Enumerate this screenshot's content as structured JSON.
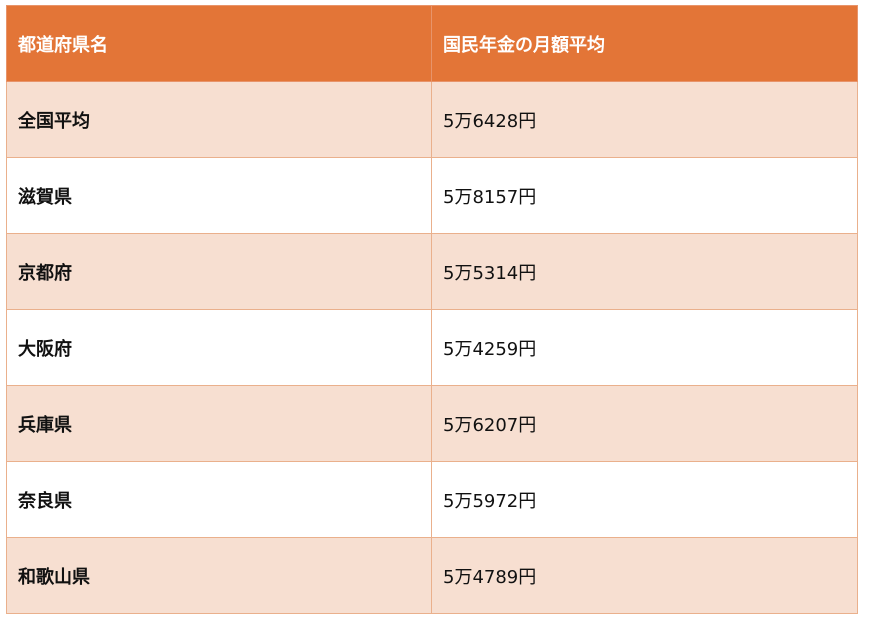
{
  "table": {
    "headers": [
      "都道府県名",
      "国民年金の月額平均"
    ],
    "rows": [
      {
        "name": "全国平均",
        "value": "5万6428円"
      },
      {
        "name": "滋賀県",
        "value": "5万8157円"
      },
      {
        "name": "京都府",
        "value": "5万5314円"
      },
      {
        "name": "大阪府",
        "value": "5万4259円"
      },
      {
        "name": "兵庫県",
        "value": "5万6207円"
      },
      {
        "name": "奈良県",
        "value": "5万5972円"
      },
      {
        "name": "和歌山県",
        "value": "5万4789円"
      }
    ]
  },
  "colors": {
    "header": "#e37537",
    "stripe": "#f7dfd1",
    "border": "#eab08c"
  }
}
